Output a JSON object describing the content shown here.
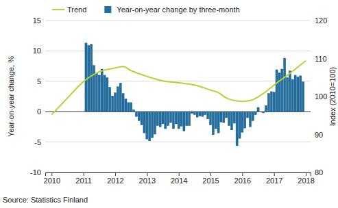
{
  "chart_data": {
    "type": "bar",
    "source": "Source: Statistics Finland",
    "ylabel": "Year-on-year change, %",
    "y2label": "Index (2010=100)",
    "xlim": [
      2009.8,
      2018.15
    ],
    "xticks": [
      2010,
      2011,
      2012,
      2013,
      2014,
      2015,
      2016,
      2017,
      2018
    ],
    "ylim": [
      -10,
      15
    ],
    "yticks": [
      -10,
      -5,
      0,
      5,
      10,
      15
    ],
    "y2lim": [
      80,
      120
    ],
    "y2ticks": [
      80,
      90,
      100,
      110,
      120
    ],
    "grid": true,
    "legend": "top",
    "series": [
      {
        "name": "Trend",
        "type": "line",
        "axis": "y2",
        "color": "#b5d334",
        "x": [
          2010,
          2010.5,
          2011,
          2011.5,
          2012,
          2012.25,
          2012.5,
          2013,
          2013.5,
          2014,
          2014.5,
          2015,
          2015.25,
          2015.5,
          2015.75,
          2016,
          2016.25,
          2016.5,
          2016.75,
          2017,
          2017.5,
          2018
        ],
        "values": [
          95.2,
          99.6,
          103.9,
          106.5,
          107.5,
          107.9,
          106.8,
          105.3,
          104.1,
          103.6,
          103.0,
          101.7,
          101.0,
          99.6,
          98.9,
          98.7,
          98.9,
          99.9,
          101.3,
          103.0,
          106.1,
          109.4
        ]
      },
      {
        "name": "Year-on-year change by three-month",
        "type": "bar",
        "color": "#1f6fa3",
        "x": [
          2011.083,
          2011.167,
          2011.25,
          2011.333,
          2011.417,
          2011.5,
          2011.583,
          2011.667,
          2011.75,
          2011.833,
          2011.917,
          2012,
          2012.083,
          2012.167,
          2012.25,
          2012.333,
          2012.417,
          2012.5,
          2012.583,
          2012.667,
          2012.75,
          2012.833,
          2012.917,
          2013,
          2013.083,
          2013.167,
          2013.25,
          2013.333,
          2013.417,
          2013.5,
          2013.583,
          2013.667,
          2013.75,
          2013.833,
          2013.917,
          2014,
          2014.083,
          2014.167,
          2014.25,
          2014.333,
          2014.417,
          2014.5,
          2014.583,
          2014.667,
          2014.75,
          2014.833,
          2014.917,
          2015,
          2015.083,
          2015.167,
          2015.25,
          2015.333,
          2015.417,
          2015.5,
          2015.583,
          2015.667,
          2015.75,
          2015.833,
          2015.917,
          2016,
          2016.083,
          2016.167,
          2016.25,
          2016.333,
          2016.417,
          2016.5,
          2016.583,
          2016.667,
          2016.75,
          2016.833,
          2016.917,
          2017,
          2017.083,
          2017.167,
          2017.25,
          2017.333,
          2017.417,
          2017.5,
          2017.583,
          2017.667,
          2017.75,
          2017.833,
          2017.917
        ],
        "values": [
          11.3,
          10.9,
          11.1,
          7.6,
          6.3,
          6.0,
          7.0,
          6.0,
          5.6,
          4.0,
          2.6,
          3.1,
          4.1,
          4.7,
          3.0,
          2.1,
          1.5,
          1.5,
          0.3,
          -0.8,
          -1.5,
          -2.2,
          -3.5,
          -4.5,
          -4.8,
          -4.3,
          -3.7,
          -2.3,
          -2.5,
          -2.0,
          -2.8,
          -2.3,
          -1.8,
          -2.8,
          -2.0,
          -2.8,
          -2.4,
          -3.2,
          -2.3,
          -2.3,
          -0.3,
          -0.5,
          -0.9,
          -0.7,
          -0.8,
          -0.5,
          -1.2,
          -2.2,
          -3.8,
          -2.8,
          -3.5,
          -1.7,
          -1.8,
          -1.0,
          -2.3,
          -3.0,
          -1.9,
          -5.6,
          -4.4,
          -3.4,
          -2.7,
          -1.0,
          -2.5,
          -1.5,
          -0.5,
          0.7,
          0.0,
          -0.2,
          1.0,
          3.0,
          3.3,
          3.2,
          6.9,
          6.4,
          7.0,
          8.8,
          5.6,
          6.7,
          5.3,
          6.0,
          5.7,
          5.9,
          4.9
        ]
      }
    ]
  }
}
